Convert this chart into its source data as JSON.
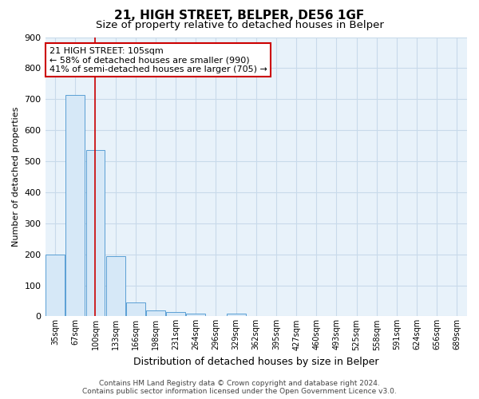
{
  "title": "21, HIGH STREET, BELPER, DE56 1GF",
  "subtitle": "Size of property relative to detached houses in Belper",
  "xlabel": "Distribution of detached houses by size in Belper",
  "ylabel": "Number of detached properties",
  "categories": [
    "35sqm",
    "67sqm",
    "100sqm",
    "133sqm",
    "166sqm",
    "198sqm",
    "231sqm",
    "264sqm",
    "296sqm",
    "329sqm",
    "362sqm",
    "395sqm",
    "427sqm",
    "460sqm",
    "493sqm",
    "525sqm",
    "558sqm",
    "591sqm",
    "624sqm",
    "656sqm",
    "689sqm"
  ],
  "values": [
    200,
    713,
    535,
    193,
    45,
    20,
    14,
    10,
    0,
    8,
    0,
    0,
    0,
    0,
    0,
    0,
    0,
    0,
    0,
    0,
    0
  ],
  "bar_facecolor": "#d6e8f7",
  "bar_edgecolor": "#5a9fd4",
  "grid_color": "#c8daea",
  "background_color": "#e8f2fa",
  "vline_x_index": 2,
  "vline_color": "#cc0000",
  "ylim": [
    0,
    900
  ],
  "yticks": [
    0,
    100,
    200,
    300,
    400,
    500,
    600,
    700,
    800,
    900
  ],
  "annotation_text": "21 HIGH STREET: 105sqm\n← 58% of detached houses are smaller (990)\n41% of semi-detached houses are larger (705) →",
  "annotation_box_facecolor": "white",
  "annotation_box_edgecolor": "#cc0000",
  "footer_line1": "Contains HM Land Registry data © Crown copyright and database right 2024.",
  "footer_line2": "Contains public sector information licensed under the Open Government Licence v3.0.",
  "title_fontsize": 11,
  "subtitle_fontsize": 9.5,
  "xlabel_fontsize": 9,
  "ylabel_fontsize": 8,
  "tick_fontsize": 7,
  "annotation_fontsize": 8,
  "footer_fontsize": 6.5
}
